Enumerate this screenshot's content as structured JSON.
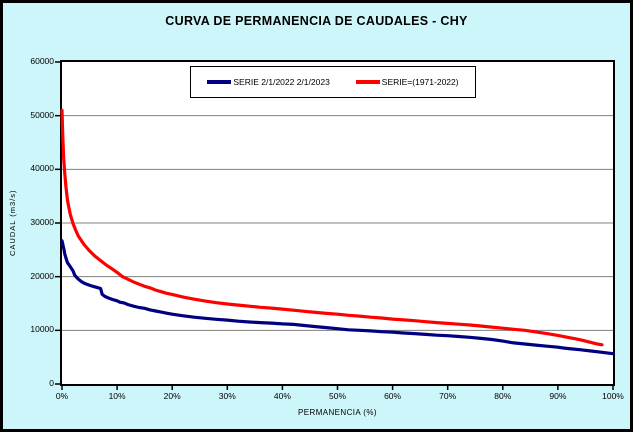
{
  "title": "CURVA DE PERMANENCIA DE CAUDALES - CHY",
  "colors": {
    "background": "#CDF6FA",
    "plot_background": "#FFFFFF",
    "frame": "#000000",
    "gridline": "#808080",
    "series_blue": "#000080",
    "series_red": "#FF0000"
  },
  "chart_data": {
    "type": "line",
    "title": "CURVA DE PERMANENCIA DE CAUDALES - CHY",
    "xlabel": "PERMANENCIA (%)",
    "ylabel": "CAUDAL (m3/s)",
    "xlim": [
      0,
      100
    ],
    "ylim": [
      0,
      60000
    ],
    "grid": "horizontal",
    "legend_position": "top-center-inside",
    "x_tick_values": [
      0,
      10,
      20,
      30,
      40,
      50,
      60,
      70,
      80,
      90,
      100
    ],
    "x_tick_labels": [
      "0%",
      "10%",
      "20%",
      "30%",
      "40%",
      "50%",
      "60%",
      "70%",
      "80%",
      "90%",
      "100%"
    ],
    "y_tick_values": [
      0,
      10000,
      20000,
      30000,
      40000,
      50000,
      60000
    ],
    "y_tick_labels": [
      "0",
      "10000",
      "20000",
      "30000",
      "40000",
      "50000",
      "60000"
    ],
    "series": [
      {
        "name": "SERIE 2/1/2022 2/1/2023",
        "color": "#000080",
        "points": [
          [
            0,
            26700
          ],
          [
            0.3,
            25300
          ],
          [
            0.5,
            24200
          ],
          [
            0.8,
            23200
          ],
          [
            1,
            22600
          ],
          [
            1.4,
            22000
          ],
          [
            1.6,
            21700
          ],
          [
            2,
            21100
          ],
          [
            2.3,
            20300
          ],
          [
            2.7,
            19800
          ],
          [
            3,
            19500
          ],
          [
            3.5,
            19100
          ],
          [
            4,
            18800
          ],
          [
            4.5,
            18600
          ],
          [
            5,
            18400
          ],
          [
            5.5,
            18250
          ],
          [
            6,
            18100
          ],
          [
            6.5,
            17950
          ],
          [
            7,
            17800
          ],
          [
            7.3,
            16700
          ],
          [
            7.8,
            16300
          ],
          [
            8.5,
            16000
          ],
          [
            9.3,
            15700
          ],
          [
            10,
            15500
          ],
          [
            10.5,
            15250
          ],
          [
            11.3,
            15100
          ],
          [
            12,
            14800
          ],
          [
            13,
            14500
          ],
          [
            14,
            14250
          ],
          [
            15,
            14100
          ],
          [
            16,
            13800
          ],
          [
            17,
            13600
          ],
          [
            18,
            13400
          ],
          [
            19,
            13200
          ],
          [
            20,
            13000
          ],
          [
            22,
            12700
          ],
          [
            24,
            12450
          ],
          [
            26,
            12250
          ],
          [
            28,
            12050
          ],
          [
            30,
            11900
          ],
          [
            32,
            11700
          ],
          [
            34,
            11550
          ],
          [
            36,
            11450
          ],
          [
            38,
            11350
          ],
          [
            40,
            11200
          ],
          [
            42,
            11100
          ],
          [
            44,
            10900
          ],
          [
            46,
            10700
          ],
          [
            48,
            10500
          ],
          [
            50,
            10300
          ],
          [
            52,
            10100
          ],
          [
            54,
            10000
          ],
          [
            56,
            9900
          ],
          [
            58,
            9750
          ],
          [
            60,
            9650
          ],
          [
            62,
            9500
          ],
          [
            64,
            9400
          ],
          [
            66,
            9250
          ],
          [
            68,
            9100
          ],
          [
            70,
            9000
          ],
          [
            72,
            8850
          ],
          [
            74,
            8700
          ],
          [
            76,
            8500
          ],
          [
            78,
            8300
          ],
          [
            80,
            8000
          ],
          [
            82,
            7650
          ],
          [
            84,
            7450
          ],
          [
            86,
            7250
          ],
          [
            88,
            7050
          ],
          [
            90,
            6850
          ],
          [
            91,
            6700
          ],
          [
            92,
            6600
          ],
          [
            94,
            6400
          ],
          [
            96,
            6150
          ],
          [
            98,
            5900
          ],
          [
            100,
            5650
          ]
        ]
      },
      {
        "name": "SERIE=(1971-2022)",
        "color": "#FF0000",
        "points": [
          [
            0,
            51000
          ],
          [
            0.15,
            46000
          ],
          [
            0.3,
            42000
          ],
          [
            0.5,
            39200
          ],
          [
            0.7,
            36800
          ],
          [
            1,
            34200
          ],
          [
            1.5,
            31600
          ],
          [
            2,
            29900
          ],
          [
            2.5,
            28600
          ],
          [
            3,
            27500
          ],
          [
            4,
            26000
          ],
          [
            5,
            24800
          ],
          [
            6,
            23800
          ],
          [
            7,
            23000
          ],
          [
            8,
            22200
          ],
          [
            9,
            21500
          ],
          [
            10,
            20800
          ],
          [
            11,
            20000
          ],
          [
            12,
            19500
          ],
          [
            13,
            19000
          ],
          [
            14,
            18600
          ],
          [
            15,
            18200
          ],
          [
            16,
            17900
          ],
          [
            17,
            17500
          ],
          [
            18,
            17200
          ],
          [
            19,
            16900
          ],
          [
            20,
            16700
          ],
          [
            22,
            16200
          ],
          [
            24,
            15800
          ],
          [
            26,
            15450
          ],
          [
            28,
            15150
          ],
          [
            30,
            14900
          ],
          [
            32,
            14700
          ],
          [
            34,
            14500
          ],
          [
            36,
            14300
          ],
          [
            38,
            14150
          ],
          [
            40,
            13950
          ],
          [
            42,
            13750
          ],
          [
            44,
            13550
          ],
          [
            46,
            13350
          ],
          [
            48,
            13150
          ],
          [
            50,
            13000
          ],
          [
            52,
            12800
          ],
          [
            54,
            12650
          ],
          [
            56,
            12450
          ],
          [
            58,
            12300
          ],
          [
            60,
            12100
          ],
          [
            62,
            11950
          ],
          [
            64,
            11800
          ],
          [
            66,
            11600
          ],
          [
            68,
            11450
          ],
          [
            70,
            11300
          ],
          [
            72,
            11150
          ],
          [
            74,
            11000
          ],
          [
            76,
            10800
          ],
          [
            78,
            10600
          ],
          [
            80,
            10400
          ],
          [
            82,
            10200
          ],
          [
            84,
            10000
          ],
          [
            86,
            9700
          ],
          [
            88,
            9400
          ],
          [
            90,
            9050
          ],
          [
            92,
            8650
          ],
          [
            94,
            8250
          ],
          [
            95,
            8000
          ],
          [
            96,
            7750
          ],
          [
            97,
            7500
          ],
          [
            98,
            7300
          ]
        ]
      }
    ]
  }
}
